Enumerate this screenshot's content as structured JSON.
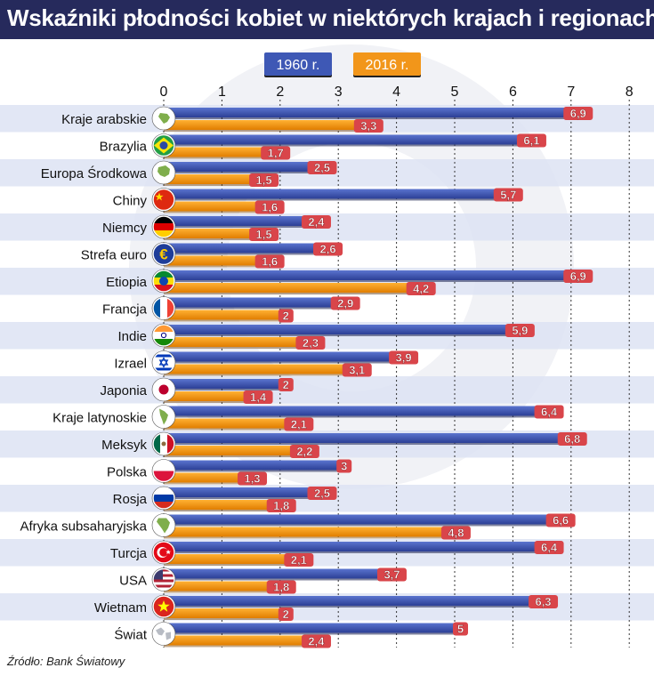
{
  "title": "Wskaźniki płodności kobiet w niektórych krajach i regionach",
  "source": "Źródło: Bank Światowy",
  "colors": {
    "title_bg": "#262a5c",
    "series_1960": "#3e58b5",
    "series_2016": "#f2961a",
    "stripe": "#dde3f3",
    "badge": "#d9454a"
  },
  "chart_data": {
    "type": "bar",
    "orientation": "horizontal",
    "title": "Wskaźniki płodności kobiet w niektórych krajach i regionach",
    "xlim": [
      0,
      8
    ],
    "xticks": [
      0,
      1,
      2,
      3,
      4,
      5,
      6,
      7,
      8
    ],
    "grid": true,
    "legend_position": "top",
    "categories": [
      "Kraje arabskie",
      "Brazylia",
      "Europa Środkowa",
      "Chiny",
      "Niemcy",
      "Strefa euro",
      "Etiopia",
      "Francja",
      "Indie",
      "Izrael",
      "Japonia",
      "Kraje latynoskie",
      "Meksyk",
      "Polska",
      "Rosja",
      "Afryka subsaharyjska",
      "Turcja",
      "USA",
      "Wietnam",
      "Świat"
    ],
    "icons": [
      "globe-arab-icon",
      "flag-brazil-icon",
      "globe-europe-icon",
      "flag-china-icon",
      "flag-germany-icon",
      "euro-icon",
      "flag-ethiopia-icon",
      "flag-france-icon",
      "flag-india-icon",
      "flag-israel-icon",
      "flag-japan-icon",
      "globe-latin-america-icon",
      "flag-mexico-icon",
      "flag-poland-icon",
      "flag-russia-icon",
      "globe-africa-icon",
      "flag-turkey-icon",
      "flag-usa-icon",
      "flag-vietnam-icon",
      "globe-world-icon"
    ],
    "series": [
      {
        "name": "1960 r.",
        "values": [
          6.9,
          6.1,
          2.5,
          5.7,
          2.4,
          2.6,
          6.9,
          2.9,
          5.9,
          3.9,
          2,
          6.4,
          6.8,
          3,
          2.5,
          6.6,
          6.4,
          3.7,
          6.3,
          5
        ],
        "labels": [
          "6,9",
          "6,1",
          "2,5",
          "5,7",
          "2,4",
          "2,6",
          "6,9",
          "2,9",
          "5,9",
          "3,9",
          "2",
          "6,4",
          "6,8",
          "3",
          "2,5",
          "6,6",
          "6,4",
          "3,7",
          "6,3",
          "5"
        ]
      },
      {
        "name": "2016 r.",
        "values": [
          3.3,
          1.7,
          1.5,
          1.6,
          1.5,
          1.6,
          4.2,
          2,
          2.3,
          3.1,
          1.4,
          2.1,
          2.2,
          1.3,
          1.8,
          4.8,
          2.1,
          1.8,
          2,
          2.4
        ],
        "labels": [
          "3,3",
          "1,7",
          "1,5",
          "1,6",
          "1,5",
          "1,6",
          "4,2",
          "2",
          "2,3",
          "3,1",
          "1,4",
          "2,1",
          "2,2",
          "1,3",
          "1,8",
          "4,8",
          "2,1",
          "1,8",
          "2",
          "2,4"
        ]
      }
    ]
  }
}
